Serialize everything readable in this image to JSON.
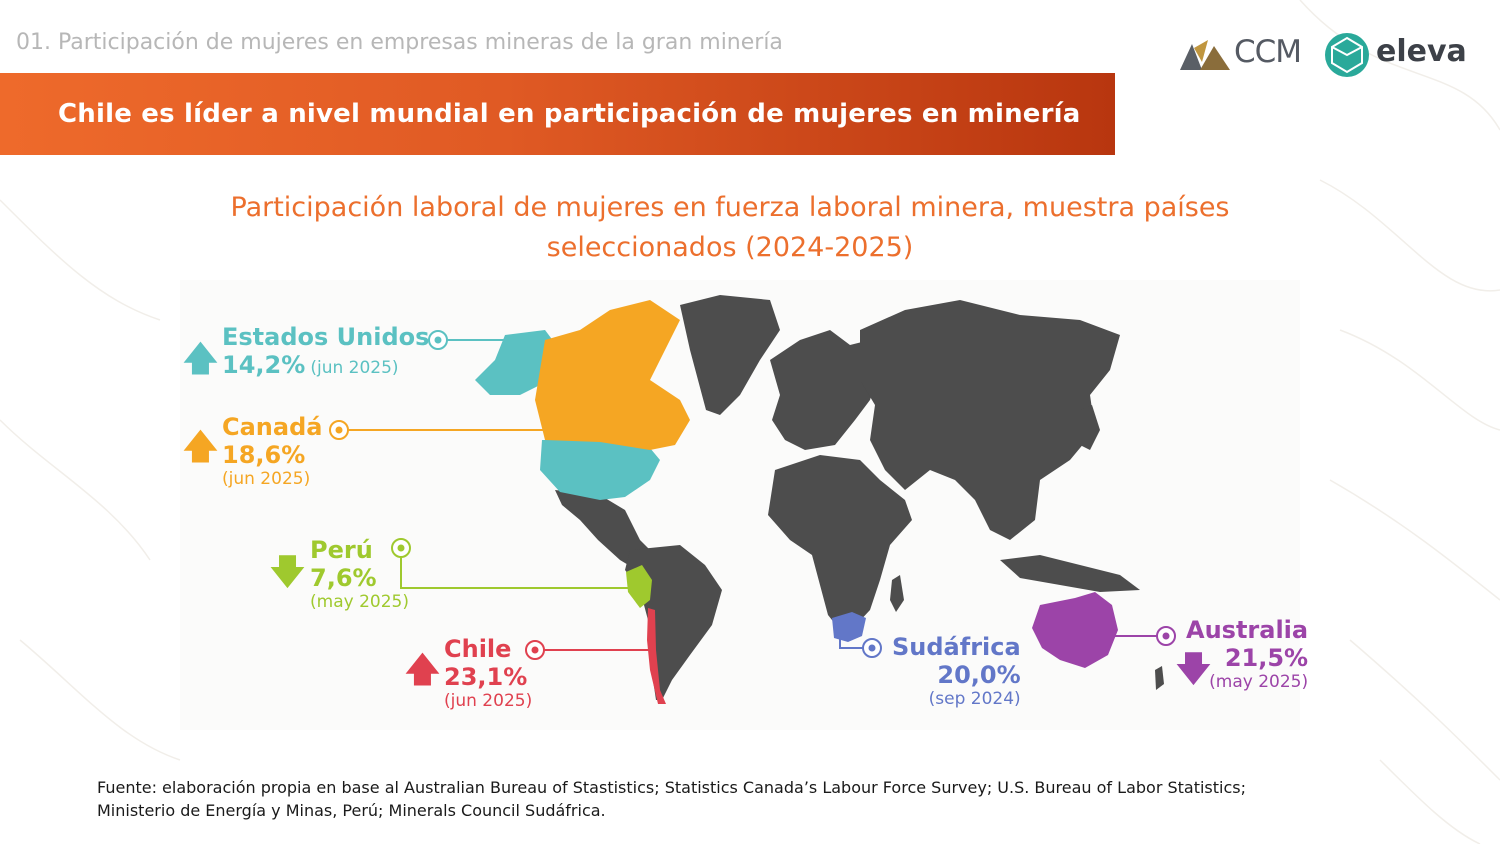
{
  "header": {
    "section_label": "01. Participación de mujeres en empresas mineras de la gran minería",
    "logo_ccm": "CCM",
    "logo_eleva": "eleva"
  },
  "banner": {
    "title": "Chile es líder a nivel mundial en participación de mujeres en minería"
  },
  "map": {
    "title_line1": "Participación laboral de mujeres en fuerza laboral minera, muestra países",
    "title_line2": "seleccionados (2024-2025)",
    "base_color": "#4d4d4d",
    "countries": [
      {
        "key": "us",
        "name": "Estados Unidos",
        "value": "14,2%",
        "date": "(jun 2025)",
        "trend": "up",
        "arrow_glyph": "🡅",
        "color": "#5bc1c2"
      },
      {
        "key": "ca",
        "name": "Canadá",
        "value": "18,6%",
        "date": "(jun 2025)",
        "trend": "up",
        "arrow_glyph": "🡅",
        "color": "#f5a623"
      },
      {
        "key": "pe",
        "name": "Perú",
        "value": "7,6%",
        "date": "(may 2025)",
        "trend": "down",
        "arrow_glyph": "🡇",
        "color": "#9fc92e"
      },
      {
        "key": "cl",
        "name": "Chile",
        "value": "23,1%",
        "date": "(jun 2025)",
        "trend": "up",
        "arrow_glyph": "🡅",
        "color": "#e0414f"
      },
      {
        "key": "za",
        "name": "Sudáfrica",
        "value": "20,0%",
        "date": "(sep 2024)",
        "trend": "none",
        "arrow_glyph": "",
        "color": "#6277c8"
      },
      {
        "key": "au",
        "name": "Australia",
        "value": "21,5%",
        "date": "(may 2025)",
        "trend": "down",
        "arrow_glyph": "🡇",
        "color": "#9c44a8"
      }
    ]
  },
  "footer": {
    "source_line1": "Fuente: elaboración propia en base al Australian Bureau of Stastistics; Statistics Canada’s Labour Force Survey; U.S. Bureau of Labor Statistics;",
    "source_line2": "Ministerio de Energía y Minas, Perú; Minerals Council Sudáfrica."
  }
}
